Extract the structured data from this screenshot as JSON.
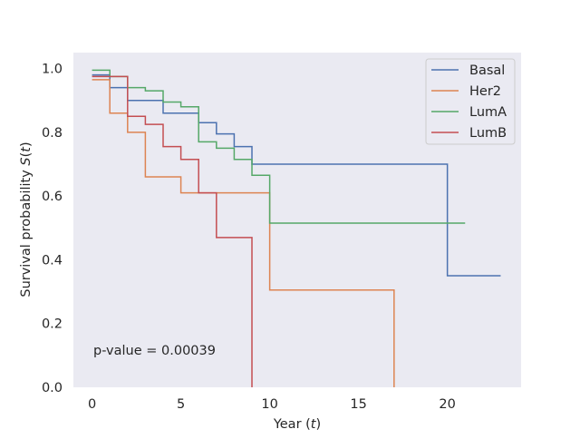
{
  "chart_data": {
    "type": "line",
    "title": "",
    "xlabel": "Year (t)",
    "xlabel_parts": {
      "prefix": "Year (",
      "var": "t",
      "suffix": ")"
    },
    "ylabel": "Survival probability S(t)",
    "ylabel_parts": {
      "prefix": "Survival probability ",
      "var": "S",
      "mid": "(",
      "var2": "t",
      "suffix": ")"
    },
    "xlim": [
      -1.05,
      24.15
    ],
    "ylim": [
      0,
      1.05
    ],
    "xticks": [
      0,
      5,
      10,
      15,
      20
    ],
    "yticks": [
      0.0,
      0.2,
      0.4,
      0.6,
      0.8,
      1.0
    ],
    "xtick_labels": [
      "0",
      "5",
      "10",
      "15",
      "20"
    ],
    "ytick_labels": [
      "0.0",
      "0.2",
      "0.4",
      "0.6",
      "0.8",
      "1.0"
    ],
    "grid": false,
    "legend_position": "top-right",
    "background": "#eaeaf2",
    "annotation": "p-value = 0.00039",
    "series": [
      {
        "name": "Basal",
        "color": "#4c72b0",
        "step": "post",
        "x": [
          0,
          1,
          2,
          4,
          6,
          7,
          8,
          9,
          20,
          23
        ],
        "y": [
          0.98,
          0.94,
          0.9,
          0.86,
          0.83,
          0.795,
          0.755,
          0.7,
          0.35,
          0.35
        ]
      },
      {
        "name": "Her2",
        "color": "#dd8452",
        "step": "post",
        "x": [
          0,
          1,
          2,
          3,
          5,
          10,
          17
        ],
        "y": [
          0.965,
          0.86,
          0.8,
          0.66,
          0.61,
          0.305,
          0.0
        ]
      },
      {
        "name": "LumA",
        "color": "#55a868",
        "step": "post",
        "x": [
          0,
          1,
          2,
          3,
          4,
          5,
          6,
          7,
          8,
          9,
          10,
          21
        ],
        "y": [
          0.995,
          0.975,
          0.94,
          0.93,
          0.895,
          0.88,
          0.77,
          0.75,
          0.715,
          0.665,
          0.515,
          0.515
        ]
      },
      {
        "name": "LumB",
        "color": "#c44e52",
        "step": "post",
        "x": [
          0,
          2,
          3,
          4,
          5,
          6,
          7,
          9
        ],
        "y": [
          0.975,
          0.85,
          0.825,
          0.755,
          0.715,
          0.61,
          0.47,
          0.0
        ]
      }
    ]
  }
}
